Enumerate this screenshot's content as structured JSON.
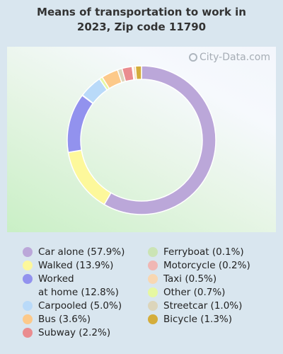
{
  "title": "Means of transportation to work in\n2023, Zip code 11790",
  "watermark": "City-Data.com",
  "chart_data": {
    "type": "pie",
    "subtype": "donut",
    "categories": [
      "Car alone",
      "Walked",
      "Worked at home",
      "Carpooled",
      "Bus",
      "Subway",
      "Ferryboat",
      "Motorcycle",
      "Taxi",
      "Other",
      "Streetcar",
      "Bicycle"
    ],
    "values": [
      57.9,
      13.9,
      12.8,
      5.0,
      3.6,
      2.2,
      0.1,
      0.2,
      0.5,
      0.7,
      1.0,
      1.3
    ],
    "colors": [
      "#bba7d9",
      "#fdf89b",
      "#9292ee",
      "#b9daf9",
      "#fcc98a",
      "#ea8c8f",
      "#cbe4b5",
      "#f0b7b4",
      "#f8d7b2",
      "#e6f8a2",
      "#dcd5bb",
      "#d4ad3b"
    ],
    "legend_labels": [
      "Car alone (57.9%)",
      "Walked (13.9%)",
      "Worked\nat home (12.8%)",
      "Carpooled (5.0%)",
      "Bus (3.6%)",
      "Subway (2.2%)",
      "Ferryboat (0.1%)",
      "Motorcycle (0.2%)",
      "Taxi (0.5%)",
      "Other (0.7%)",
      "Streetcar (1.0%)",
      "Bicycle (1.3%)"
    ],
    "slice_order": [
      "Car alone",
      "Walked",
      "Worked at home",
      "Ferryboat",
      "Carpooled",
      "Other",
      "Bus",
      "Streetcar",
      "Subway",
      "Motorcycle",
      "Taxi",
      "Bicycle"
    ],
    "legend": "bottom"
  }
}
